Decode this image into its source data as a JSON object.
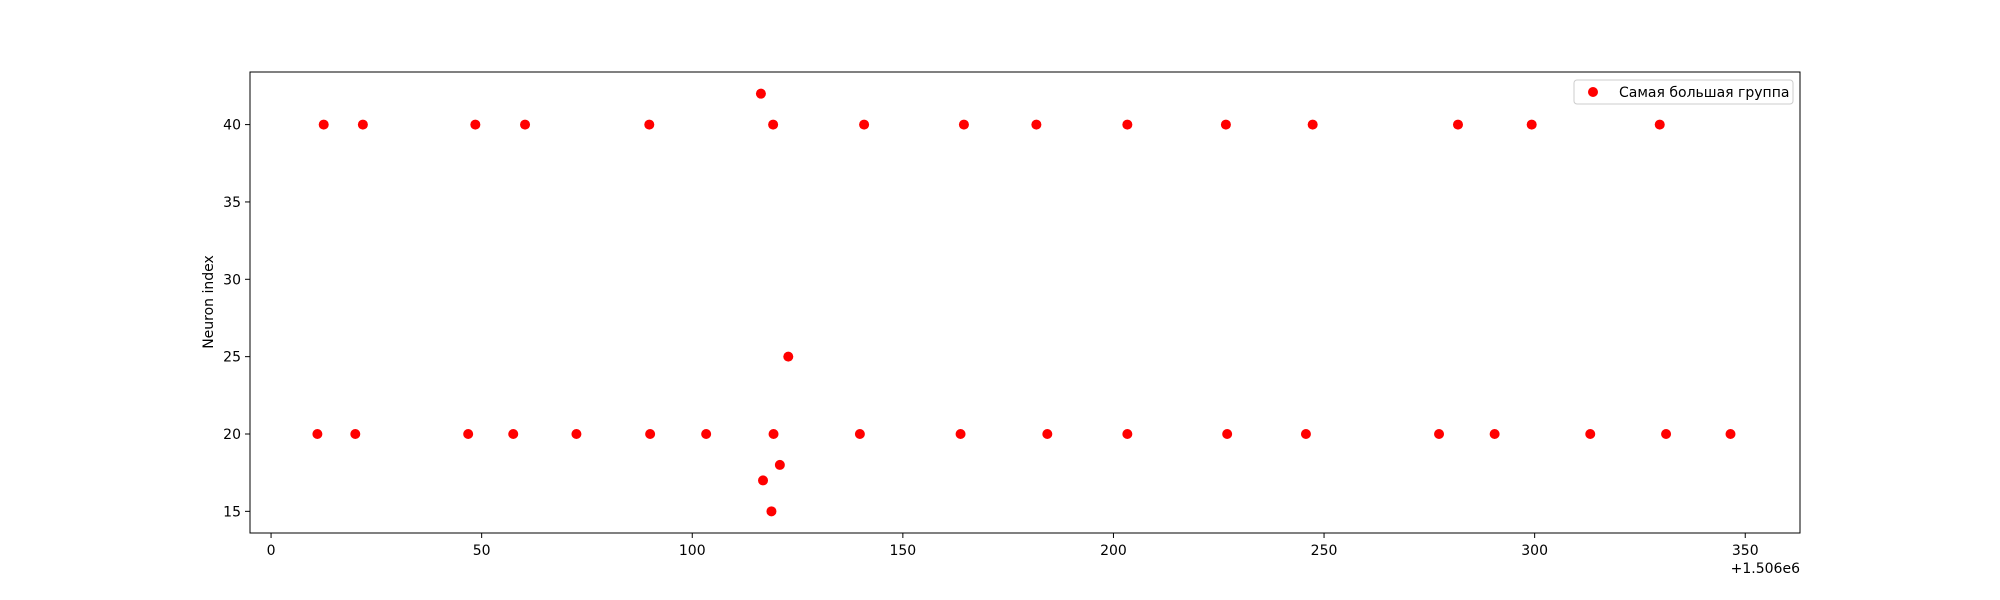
{
  "chart_data": {
    "type": "scatter",
    "title": "",
    "xlabel": "",
    "ylabel": "Neuron index",
    "x_offset_label": "+1.506e6",
    "xlim": [
      -5,
      363
    ],
    "ylim": [
      13.6,
      43.4
    ],
    "xticks": [
      0,
      50,
      100,
      150,
      200,
      250,
      300,
      350
    ],
    "xtick_labels": [
      "0",
      "50",
      "100",
      "150",
      "200",
      "250",
      "300",
      "350"
    ],
    "yticks": [
      15,
      20,
      25,
      30,
      35,
      40
    ],
    "ytick_labels": [
      "15",
      "20",
      "25",
      "30",
      "35",
      "40"
    ],
    "grid": false,
    "legend_position": "top-right",
    "series": [
      {
        "name": "Самая большая группа",
        "color": "#ff0000",
        "marker": "circle",
        "points": [
          {
            "x": 12.5,
            "y": 40
          },
          {
            "x": 21.8,
            "y": 40
          },
          {
            "x": 48.5,
            "y": 40
          },
          {
            "x": 60.3,
            "y": 40
          },
          {
            "x": 89.8,
            "y": 40
          },
          {
            "x": 116.3,
            "y": 42
          },
          {
            "x": 119.2,
            "y": 40
          },
          {
            "x": 140.8,
            "y": 40
          },
          {
            "x": 164.5,
            "y": 40
          },
          {
            "x": 181.7,
            "y": 40
          },
          {
            "x": 203.3,
            "y": 40
          },
          {
            "x": 226.7,
            "y": 40
          },
          {
            "x": 247.3,
            "y": 40
          },
          {
            "x": 281.8,
            "y": 40
          },
          {
            "x": 299.3,
            "y": 40
          },
          {
            "x": 329.7,
            "y": 40
          },
          {
            "x": 122.8,
            "y": 25
          },
          {
            "x": 11.0,
            "y": 20
          },
          {
            "x": 20.0,
            "y": 20
          },
          {
            "x": 46.8,
            "y": 20
          },
          {
            "x": 57.5,
            "y": 20
          },
          {
            "x": 72.5,
            "y": 20
          },
          {
            "x": 90.0,
            "y": 20
          },
          {
            "x": 103.3,
            "y": 20
          },
          {
            "x": 119.3,
            "y": 20
          },
          {
            "x": 139.8,
            "y": 20
          },
          {
            "x": 163.7,
            "y": 20
          },
          {
            "x": 184.3,
            "y": 20
          },
          {
            "x": 203.3,
            "y": 20
          },
          {
            "x": 227.0,
            "y": 20
          },
          {
            "x": 245.7,
            "y": 20
          },
          {
            "x": 277.3,
            "y": 20
          },
          {
            "x": 290.5,
            "y": 20
          },
          {
            "x": 313.2,
            "y": 20
          },
          {
            "x": 331.2,
            "y": 20
          },
          {
            "x": 346.5,
            "y": 20
          },
          {
            "x": 120.8,
            "y": 18
          },
          {
            "x": 116.8,
            "y": 17
          },
          {
            "x": 118.8,
            "y": 15
          }
        ]
      }
    ]
  }
}
